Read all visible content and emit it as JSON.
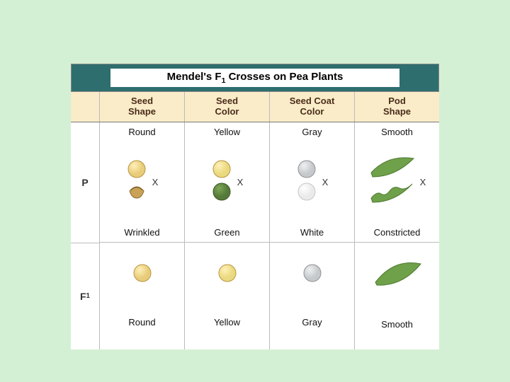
{
  "title_pre": "Mendel's F",
  "title_sub": "1",
  "title_post": " Crosses on Pea Plants",
  "row_labels": {
    "p": "P",
    "f1_pre": "F",
    "f1_sub": "1"
  },
  "cross_symbol": "X",
  "colors": {
    "page_bg": "#d4f0d4",
    "title_band": "#2f6e6e",
    "header_bg": "#faecc8",
    "header_text": "#4a2c1a",
    "border": "#bbbbbb",
    "round_seed": "#e8cc7a",
    "round_seed_hi": "#fff0b8",
    "wrinkled_seed": "#c9a257",
    "yellow_seed": "#ead97e",
    "green_seed": "#557a3a",
    "green_seed_hi": "#7fa755",
    "gray_coat": "#c6c9cc",
    "gray_coat_hi": "#eef0f1",
    "white_coat": "#f6f6f6",
    "pod_green": "#6fa04a",
    "pod_green_dk": "#4f7a33"
  },
  "columns": [
    {
      "header": "Seed\nShape",
      "p_dominant": "Round",
      "p_recessive": "Wrinkled",
      "f1": "Round",
      "dom_icon": "round-seed",
      "rec_icon": "wrinkled-seed",
      "f1_icon": "round-seed"
    },
    {
      "header": "Seed\nColor",
      "p_dominant": "Yellow",
      "p_recessive": "Green",
      "f1": "Yellow",
      "dom_icon": "yellow-seed",
      "rec_icon": "green-seed",
      "f1_icon": "yellow-seed"
    },
    {
      "header": "Seed Coat\nColor",
      "p_dominant": "Gray",
      "p_recessive": "White",
      "f1": "Gray",
      "dom_icon": "gray-coat",
      "rec_icon": "white-coat",
      "f1_icon": "gray-coat"
    },
    {
      "header": "Pod\nShape",
      "p_dominant": "Smooth",
      "p_recessive": "Constricted",
      "f1": "Smooth",
      "dom_icon": "smooth-pod",
      "rec_icon": "constricted-pod",
      "f1_icon": "smooth-pod"
    }
  ]
}
